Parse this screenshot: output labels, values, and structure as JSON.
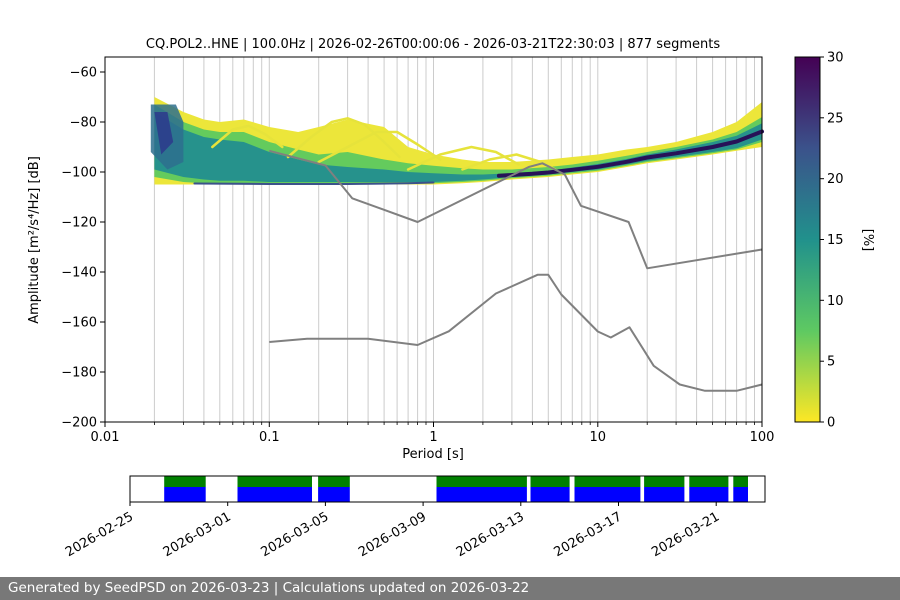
{
  "footer": {
    "text": "Generated by SeedPSD on 2026-03-23 | Calculations updated on 2026-03-22"
  },
  "chart_data": {
    "type": "heatmap",
    "subtype": "ppsd-probabilistic-power-spectral-density",
    "title": "CQ.POL2..HNE | 100.0Hz | 2026-02-26T00:00:06 - 2026-03-21T22:30:03 | 877 segments",
    "meta": {
      "station": "CQ.POL2..HNE",
      "sampling_rate": "100.0Hz",
      "start_time": "2026-02-26T00:00:06",
      "end_time": "2026-03-21T22:30:03",
      "segments": 877
    },
    "xlabel": "Period [s]",
    "ylabel": "Amplitude [m²/s⁴/Hz] [dB]",
    "xscale": "log",
    "xlim": [
      0.01,
      100
    ],
    "ylim": [
      -200,
      -54
    ],
    "xticks": {
      "values": [
        0.01,
        0.1,
        1,
        10,
        100
      ],
      "labels": [
        "0.01",
        "0.1",
        "1",
        "10",
        "100"
      ]
    },
    "yticks": {
      "values": [
        -60,
        -80,
        -100,
        -120,
        -140,
        -160,
        -180,
        -200
      ],
      "labels": [
        "−60",
        "−80",
        "−100",
        "−120",
        "−140",
        "−160",
        "−180",
        "−200"
      ]
    },
    "grid": "vertical-log-minor-and-major",
    "colorbar": {
      "label": "[%]",
      "min": 0,
      "max": 30,
      "ticks": [
        0,
        5,
        10,
        15,
        20,
        25,
        30
      ],
      "colormap": "viridis_r",
      "stops": [
        "#fde725",
        "#5ec962",
        "#21918c",
        "#3b528b",
        "#440154"
      ]
    },
    "noise_models": {
      "color": "#808080",
      "nhnm": [
        [
          0.1,
          -91.5
        ],
        [
          0.22,
          -97.4
        ],
        [
          0.32,
          -110.5
        ],
        [
          0.8,
          -120.0
        ],
        [
          3.8,
          -98.0
        ],
        [
          4.6,
          -96.5
        ],
        [
          6.3,
          -101.0
        ],
        [
          7.9,
          -113.5
        ],
        [
          15.4,
          -120.0
        ],
        [
          20.0,
          -138.5
        ],
        [
          100,
          -131.0
        ]
      ],
      "nlnm": [
        [
          0.1,
          -168.0
        ],
        [
          0.17,
          -166.7
        ],
        [
          0.4,
          -166.7
        ],
        [
          0.8,
          -169.2
        ],
        [
          1.24,
          -163.7
        ],
        [
          2.4,
          -148.6
        ],
        [
          4.3,
          -141.1
        ],
        [
          5.0,
          -141.1
        ],
        [
          6.0,
          -149.0
        ],
        [
          10.0,
          -163.8
        ],
        [
          12.0,
          -166.2
        ],
        [
          15.6,
          -162.1
        ],
        [
          21.9,
          -177.5
        ],
        [
          31.6,
          -185.0
        ],
        [
          45.0,
          -187.5
        ],
        [
          70.0,
          -187.5
        ],
        [
          100,
          -185.0
        ]
      ]
    },
    "ppsd": {
      "periods": [
        0.02,
        0.03,
        0.04,
        0.05,
        0.07,
        0.1,
        0.15,
        0.2,
        0.3,
        0.5,
        0.7,
        1,
        1.5,
        2,
        3,
        5,
        7,
        10,
        15,
        20,
        30,
        50,
        70,
        100
      ],
      "percentile_bands": {
        "outer": {
          "color": "#ece63a",
          "top": [
            -70,
            -76,
            -79,
            -80,
            -79,
            -82,
            -84,
            -82,
            -79,
            -82,
            -90,
            -93,
            -95,
            -96,
            -96,
            -95,
            -94,
            -93,
            -91,
            -90,
            -88,
            -84,
            -80,
            -72
          ],
          "bottom": [
            -105,
            -105,
            -105,
            -105,
            -105,
            -105,
            -105,
            -105,
            -105,
            -105,
            -105,
            -105,
            -104.5,
            -104,
            -103,
            -102,
            -101,
            -100,
            -98,
            -96.5,
            -95,
            -93,
            -91.5,
            -90
          ]
        },
        "mid": {
          "color": "#64cb5d",
          "top": [
            -73,
            -80,
            -83,
            -84,
            -84,
            -88,
            -91,
            -93,
            -92,
            -95,
            -96.5,
            -97.5,
            -98.5,
            -99,
            -99,
            -98,
            -97,
            -95.5,
            -93.5,
            -92,
            -90,
            -87,
            -84,
            -78
          ],
          "bottom": [
            -102,
            -104,
            -104.5,
            -104.5,
            -104.5,
            -104.5,
            -104.5,
            -104.5,
            -104.5,
            -104.5,
            -104.5,
            -104.5,
            -104,
            -103.5,
            -102.5,
            -101.5,
            -100.5,
            -99.5,
            -97.5,
            -96,
            -94.5,
            -92.5,
            -91,
            -88
          ]
        },
        "inner": {
          "color": "#26928c",
          "top": [
            -76,
            -83,
            -86,
            -87,
            -88,
            -92,
            -95,
            -97,
            -98,
            -99,
            -100,
            -100.5,
            -101,
            -101,
            -100.5,
            -99.5,
            -98.2,
            -96.8,
            -94.8,
            -93,
            -91,
            -88,
            -85.5,
            -80.5
          ],
          "bottom": [
            -99,
            -102,
            -103,
            -103.5,
            -103.5,
            -104,
            -104,
            -104,
            -104,
            -104,
            -104,
            -104,
            -103.5,
            -103,
            -102,
            -101,
            -100,
            -99,
            -97,
            -95.5,
            -94,
            -92,
            -90.5,
            -87
          ]
        }
      },
      "mode_ridge": {
        "color": "#271258",
        "points": [
          [
            2.5,
            -101.5
          ],
          [
            3,
            -101.2
          ],
          [
            4,
            -100.7
          ],
          [
            5,
            -100.2
          ],
          [
            7,
            -99.1
          ],
          [
            10,
            -97.9
          ],
          [
            15,
            -95.9
          ],
          [
            20,
            -94.2
          ],
          [
            30,
            -92.5
          ],
          [
            50,
            -90
          ],
          [
            70,
            -87.8
          ],
          [
            100,
            -83.8
          ]
        ]
      },
      "secondary_ridge": {
        "color": "#3b528b",
        "points": [
          [
            0.035,
            -104.6
          ],
          [
            0.1,
            -104.8
          ],
          [
            0.3,
            -104.8
          ],
          [
            0.7,
            -104.5
          ],
          [
            1,
            -104.2
          ]
        ]
      },
      "arcs": {
        "color": "#e6e33b",
        "paths": [
          [
            [
              0.045,
              -90
            ],
            [
              0.06,
              -83
            ],
            [
              0.075,
              -81.5
            ],
            [
              0.095,
              -85
            ],
            [
              0.12,
              -90
            ]
          ],
          [
            [
              0.13,
              -94
            ],
            [
              0.18,
              -86
            ],
            [
              0.24,
              -80
            ],
            [
              0.3,
              -78.5
            ],
            [
              0.38,
              -81
            ],
            [
              0.5,
              -88
            ],
            [
              0.62,
              -94
            ]
          ],
          [
            [
              0.2,
              -96
            ],
            [
              0.3,
              -90
            ],
            [
              0.45,
              -84
            ],
            [
              0.6,
              -84
            ],
            [
              0.8,
              -89
            ],
            [
              1.1,
              -95
            ]
          ],
          [
            [
              0.7,
              -99
            ],
            [
              1.1,
              -93
            ],
            [
              1.7,
              -90
            ],
            [
              2.4,
              -92
            ],
            [
              3.3,
              -97
            ]
          ],
          [
            [
              1.5,
              -99
            ],
            [
              2.2,
              -95
            ],
            [
              3.2,
              -93
            ],
            [
              4.5,
              -96
            ],
            [
              5.5,
              -99
            ]
          ]
        ]
      },
      "short_period_blob": {
        "outer_color": "#2e6f8e",
        "outer": [
          [
            0.019,
            -73
          ],
          [
            0.027,
            -73
          ],
          [
            0.03,
            -80
          ],
          [
            0.03,
            -96
          ],
          [
            0.024,
            -99
          ],
          [
            0.019,
            -92
          ]
        ],
        "inner_color": "#2d3a8c",
        "inner": [
          [
            0.02,
            -76
          ],
          [
            0.024,
            -76
          ],
          [
            0.026,
            -88
          ],
          [
            0.022,
            -93
          ]
        ]
      }
    },
    "timeline": {
      "total_days": 26,
      "origin_date": "2026-02-25",
      "ticks": {
        "days": [
          0,
          4,
          8,
          12,
          16,
          20,
          24
        ],
        "labels": [
          "2026-02-25",
          "2026-03-01",
          "2026-03-05",
          "2026-03-09",
          "2026-03-13",
          "2026-03-17",
          "2026-03-21"
        ]
      },
      "coverage_color_top": "#008000",
      "coverage_color_bottom": "#0000ff",
      "coverage_days": [
        [
          1.4,
          3.1
        ],
        [
          4.4,
          7.45
        ],
        [
          7.7,
          9.0
        ],
        [
          12.55,
          16.25
        ],
        [
          16.4,
          18.0
        ],
        [
          18.2,
          20.9
        ],
        [
          21.05,
          22.7
        ],
        [
          22.9,
          24.5
        ],
        [
          24.7,
          25.3
        ]
      ]
    }
  }
}
